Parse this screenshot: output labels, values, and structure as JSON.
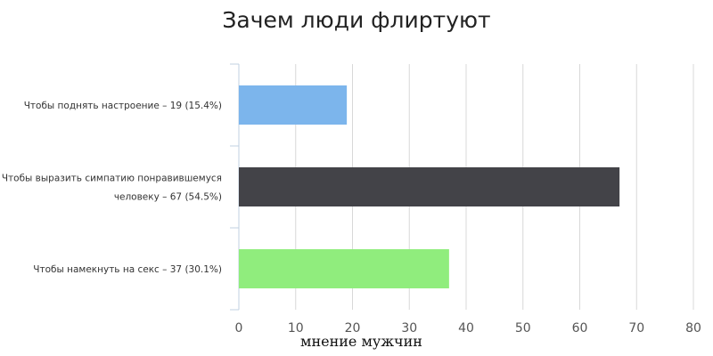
{
  "chart_data": {
    "type": "bar",
    "orientation": "horizontal",
    "title": "Зачем люди флиртуют",
    "xlabel": "мнение мужчин",
    "ylabel": "",
    "categories": [
      [
        "Чтобы поднять настроение – 19 (15.4%)"
      ],
      [
        "Чтобы выразить симпатию понравившемуся",
        "человеку – 67 (54.5%)"
      ],
      [
        "Чтобы намекнуть на секс – 37 (30.1%)"
      ]
    ],
    "values": [
      19,
      67,
      37
    ],
    "colors": [
      "#7cb5ec",
      "#434348",
      "#90ed7d"
    ],
    "xlim": [
      0,
      80
    ],
    "xticks": [
      0,
      10,
      20,
      30,
      40,
      50,
      60,
      70,
      80
    ],
    "grid": true,
    "legend": "none"
  }
}
